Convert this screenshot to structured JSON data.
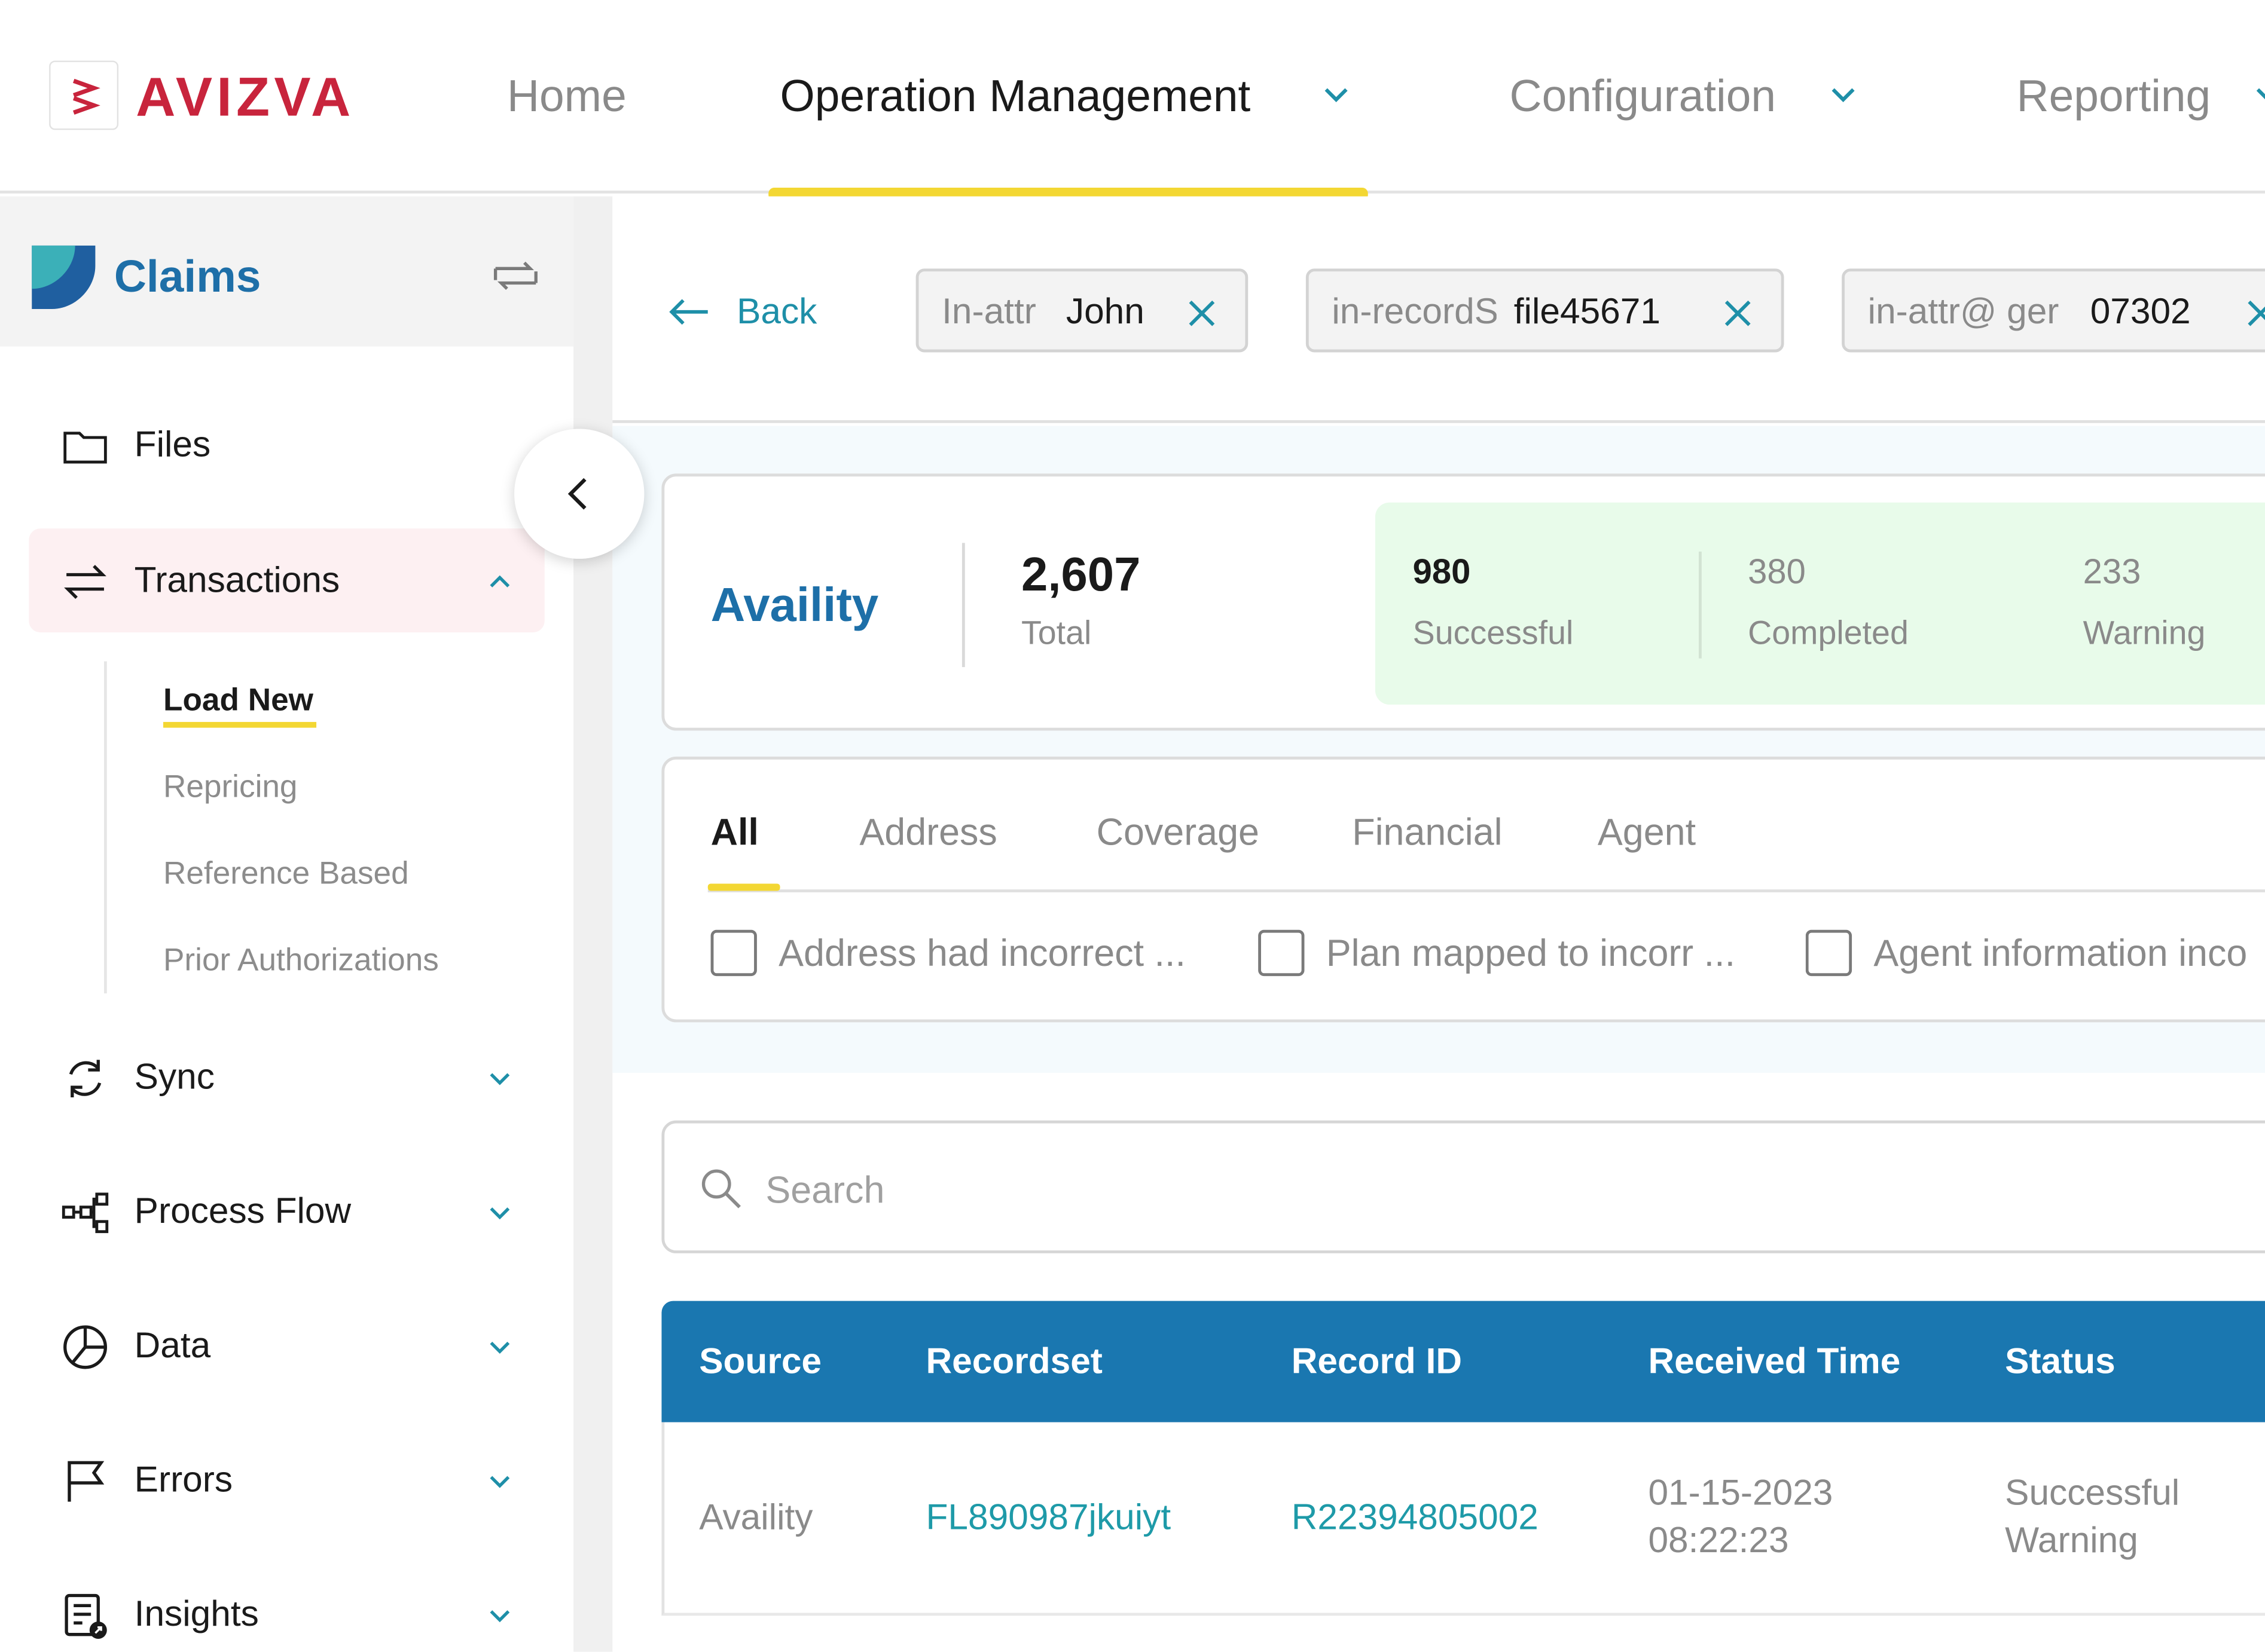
{
  "header": {
    "logo_text": "AVIZVA",
    "nav": [
      {
        "label": "Home"
      },
      {
        "label": "Operation Management"
      },
      {
        "label": "Configuration"
      },
      {
        "label": "Reporting"
      }
    ],
    "active_nav": "Operation Management"
  },
  "sidebar": {
    "module_title": "Claims",
    "items": [
      {
        "label": "Files",
        "icon": "folder-icon"
      },
      {
        "label": "Transactions",
        "icon": "arrows-exchange-icon"
      },
      {
        "label": "Sync",
        "icon": "sync-icon"
      },
      {
        "label": "Process Flow",
        "icon": "process-flow-icon"
      },
      {
        "label": "Data",
        "icon": "pie-chart-icon"
      },
      {
        "label": "Errors",
        "icon": "flag-icon"
      },
      {
        "label": "Insights",
        "icon": "insights-icon"
      }
    ],
    "sub_items": [
      {
        "label": "Load New"
      },
      {
        "label": "Repricing"
      },
      {
        "label": "Reference Based"
      },
      {
        "label": "Prior Authorizations"
      }
    ]
  },
  "toolbar": {
    "back_label": "Back",
    "filters": [
      {
        "key": "In-attr",
        "value": "John"
      },
      {
        "key": "in-recordS",
        "value": "file45671"
      },
      {
        "key": "in-attr@ ger",
        "value": "07302"
      }
    ]
  },
  "summary": {
    "source": "Availity",
    "total_value": "2,607",
    "total_label": "Total",
    "stats": [
      {
        "value": "980",
        "label": "Successful"
      },
      {
        "value": "380",
        "label": "Completed"
      },
      {
        "value": "233",
        "label": "Warning"
      }
    ]
  },
  "tabs": {
    "items": [
      {
        "label": "All"
      },
      {
        "label": "Address"
      },
      {
        "label": "Coverage"
      },
      {
        "label": "Financial"
      },
      {
        "label": "Agent"
      }
    ],
    "checks": [
      {
        "label": "Address had incorrect ..."
      },
      {
        "label": "Plan mapped to incorr ..."
      },
      {
        "label": "Agent information inco"
      }
    ]
  },
  "search": {
    "placeholder": "Search"
  },
  "table": {
    "columns": [
      "Source",
      "Recordset",
      "Record ID",
      "Received Time",
      "Status"
    ],
    "rows": [
      {
        "source": "Availity",
        "recordset": "FL890987jkuiyt",
        "record_id": "R22394805002",
        "received_date": "01-15-2023",
        "received_time": "08:22:23",
        "status_1": "Successful",
        "status_2": "Warning"
      }
    ]
  },
  "colors": {
    "brand_red": "#c8243c",
    "primary_blue": "#1a77b0",
    "accent_yellow": "#f3d733",
    "link_teal": "#1e9aa8"
  }
}
